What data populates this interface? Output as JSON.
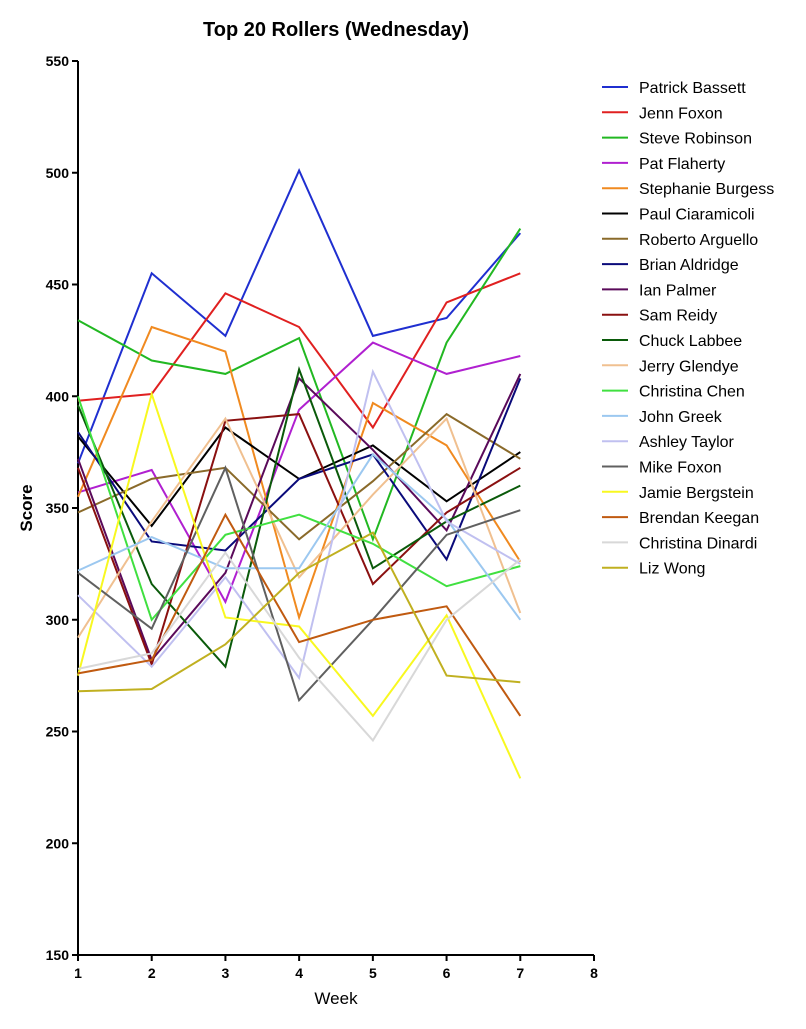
{
  "chart_data": {
    "type": "line",
    "title": "Top 20 Rollers (Wednesday)",
    "xlabel": "Week",
    "ylabel": "Score",
    "xlim": [
      1,
      8
    ],
    "ylim": [
      150,
      550
    ],
    "x_ticks": [
      "1",
      "2",
      "3",
      "4",
      "5",
      "6",
      "7",
      "8"
    ],
    "y_ticks": [
      "150",
      "200",
      "250",
      "300",
      "350",
      "400",
      "450",
      "500",
      "550"
    ],
    "x": [
      1,
      2,
      3,
      4,
      5,
      6,
      7
    ],
    "grid": false,
    "legend_position": "right",
    "series": [
      {
        "name": "Patrick Bassett",
        "color": "#1f2fd0",
        "values": [
          370,
          455,
          427,
          501,
          427,
          435,
          473
        ]
      },
      {
        "name": "Jenn Foxon",
        "color": "#e02020",
        "values": [
          398,
          401,
          446,
          431,
          386,
          442,
          455
        ]
      },
      {
        "name": "Steve Robinson",
        "color": "#22b822",
        "values": [
          434,
          416,
          410,
          426,
          336,
          424,
          475
        ]
      },
      {
        "name": "Pat Flaherty",
        "color": "#b020d0",
        "values": [
          357,
          367,
          308,
          394,
          424,
          410,
          418
        ]
      },
      {
        "name": "Stephanie Burgess",
        "color": "#f08a20",
        "values": [
          355,
          431,
          420,
          301,
          397,
          378,
          326
        ]
      },
      {
        "name": "Paul Ciaramicoli",
        "color": "#000000",
        "values": [
          382,
          342,
          386,
          363,
          378,
          353,
          375
        ]
      },
      {
        "name": "Roberto Arguello",
        "color": "#8a6a2a",
        "values": [
          348,
          363,
          368,
          336,
          362,
          392,
          372
        ]
      },
      {
        "name": "Brian Aldridge",
        "color": "#0a0a7a",
        "values": [
          384,
          335,
          331,
          363,
          374,
          327,
          408
        ]
      },
      {
        "name": "Ian Palmer",
        "color": "#5a0a5a",
        "values": [
          372,
          282,
          321,
          408,
          376,
          340,
          410
        ]
      },
      {
        "name": "Sam Reidy",
        "color": "#8a1010",
        "values": [
          368,
          280,
          389,
          392,
          316,
          348,
          368
        ]
      },
      {
        "name": "Chuck Labbee",
        "color": "#0a5a0a",
        "values": [
          396,
          316,
          279,
          412,
          323,
          344,
          360
        ]
      },
      {
        "name": "Jerry Glendye",
        "color": "#f0c090",
        "values": [
          292,
          344,
          390,
          319,
          356,
          390,
          303
        ]
      },
      {
        "name": "Christina Chen",
        "color": "#40e040",
        "values": [
          400,
          300,
          338,
          347,
          334,
          315,
          324
        ]
      },
      {
        "name": "John Greek",
        "color": "#9cc8f0",
        "values": [
          322,
          337,
          323,
          323,
          374,
          345,
          300
        ]
      },
      {
        "name": "Ashley Taylor",
        "color": "#c0c0f0",
        "values": [
          311,
          279,
          319,
          274,
          411,
          344,
          325
        ]
      },
      {
        "name": "Mike Foxon",
        "color": "#606060",
        "values": [
          321,
          296,
          368,
          264,
          300,
          338,
          349
        ]
      },
      {
        "name": "Jamie Bergstein",
        "color": "#f8f820",
        "values": [
          275,
          401,
          301,
          297,
          257,
          302,
          229
        ]
      },
      {
        "name": "Brendan Keegan",
        "color": "#c05a10",
        "values": [
          276,
          282,
          347,
          290,
          300,
          306,
          257
        ]
      },
      {
        "name": "Christina Dinardi",
        "color": "#d8d8d8",
        "values": [
          278,
          285,
          330,
          283,
          246,
          300,
          327
        ]
      },
      {
        "name": "Liz Wong",
        "color": "#c0b020",
        "values": [
          268,
          269,
          289,
          321,
          339,
          275,
          272
        ]
      }
    ]
  }
}
